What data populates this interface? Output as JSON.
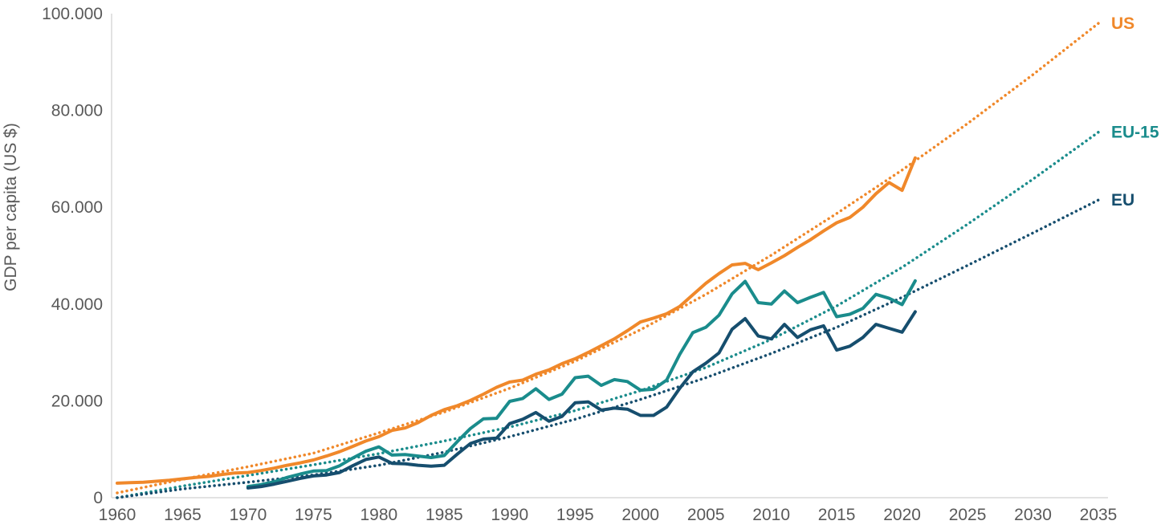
{
  "chart_data": {
    "type": "line",
    "title": "",
    "xlabel": "",
    "ylabel": "GDP per capita (US $)",
    "xlim": [
      1960,
      2035
    ],
    "ylim": [
      0,
      100000
    ],
    "x_ticks": [
      "1960",
      "1965",
      "1970",
      "1975",
      "1980",
      "1985",
      "1990",
      "1995",
      "2000",
      "2005",
      "2010",
      "2015",
      "2020",
      "2025",
      "2030",
      "2035"
    ],
    "y_ticks": [
      "0",
      "20.000",
      "40.000",
      "60.000",
      "80.000",
      "100.000"
    ],
    "x_tick_values": [
      1960,
      1965,
      1970,
      1975,
      1980,
      1985,
      1990,
      1995,
      2000,
      2005,
      2010,
      2015,
      2020,
      2025,
      2030,
      2035
    ],
    "y_tick_values": [
      0,
      20000,
      40000,
      60000,
      80000,
      100000
    ],
    "grid": false,
    "legend": "none",
    "series": [
      {
        "name": "US",
        "color": "#F0882A",
        "label_value": 98000,
        "data": [
          [
            1960,
            3000
          ],
          [
            1961,
            3100
          ],
          [
            1962,
            3200
          ],
          [
            1963,
            3400
          ],
          [
            1964,
            3600
          ],
          [
            1965,
            3900
          ],
          [
            1966,
            4200
          ],
          [
            1967,
            4400
          ],
          [
            1968,
            4800
          ],
          [
            1969,
            5100
          ],
          [
            1970,
            5200
          ],
          [
            1971,
            5600
          ],
          [
            1972,
            6100
          ],
          [
            1973,
            6700
          ],
          [
            1974,
            7200
          ],
          [
            1975,
            7800
          ],
          [
            1976,
            8600
          ],
          [
            1977,
            9500
          ],
          [
            1978,
            10600
          ],
          [
            1979,
            11700
          ],
          [
            1980,
            12600
          ],
          [
            1981,
            13900
          ],
          [
            1982,
            14400
          ],
          [
            1983,
            15500
          ],
          [
            1984,
            17000
          ],
          [
            1985,
            18200
          ],
          [
            1986,
            19000
          ],
          [
            1987,
            20100
          ],
          [
            1988,
            21400
          ],
          [
            1989,
            22800
          ],
          [
            1990,
            23900
          ],
          [
            1991,
            24300
          ],
          [
            1992,
            25500
          ],
          [
            1993,
            26400
          ],
          [
            1994,
            27700
          ],
          [
            1995,
            28700
          ],
          [
            1996,
            30000
          ],
          [
            1997,
            31400
          ],
          [
            1998,
            32800
          ],
          [
            1999,
            34500
          ],
          [
            2000,
            36300
          ],
          [
            2001,
            37100
          ],
          [
            2002,
            38000
          ],
          [
            2003,
            39500
          ],
          [
            2004,
            41900
          ],
          [
            2005,
            44300
          ],
          [
            2006,
            46300
          ],
          [
            2007,
            48100
          ],
          [
            2008,
            48400
          ],
          [
            2009,
            47100
          ],
          [
            2010,
            48500
          ],
          [
            2011,
            50000
          ],
          [
            2012,
            51700
          ],
          [
            2013,
            53300
          ],
          [
            2014,
            55100
          ],
          [
            2015,
            56800
          ],
          [
            2016,
            57900
          ],
          [
            2017,
            60000
          ],
          [
            2018,
            62800
          ],
          [
            2019,
            65100
          ],
          [
            2020,
            63500
          ],
          [
            2021,
            70200
          ]
        ],
        "trend": [
          [
            1960,
            1000
          ],
          [
            1965,
            3800
          ],
          [
            1970,
            6400
          ],
          [
            1975,
            9200
          ],
          [
            1980,
            13400
          ],
          [
            1985,
            17700
          ],
          [
            1990,
            22600
          ],
          [
            1995,
            28200
          ],
          [
            2000,
            34700
          ],
          [
            2005,
            42000
          ],
          [
            2010,
            50100
          ],
          [
            2015,
            58700
          ],
          [
            2020,
            67700
          ],
          [
            2025,
            77300
          ],
          [
            2030,
            87400
          ],
          [
            2035,
            98000
          ]
        ]
      },
      {
        "name": "EU-15",
        "color": "#1A8C8C",
        "label_value": 75500,
        "data": [
          [
            1970,
            2300
          ],
          [
            1971,
            2700
          ],
          [
            1972,
            3300
          ],
          [
            1973,
            4200
          ],
          [
            1974,
            4900
          ],
          [
            1975,
            5500
          ],
          [
            1976,
            5600
          ],
          [
            1977,
            6600
          ],
          [
            1978,
            8200
          ],
          [
            1979,
            9600
          ],
          [
            1980,
            10500
          ],
          [
            1981,
            8800
          ],
          [
            1982,
            8900
          ],
          [
            1983,
            8600
          ],
          [
            1984,
            8300
          ],
          [
            1985,
            8700
          ],
          [
            1986,
            11600
          ],
          [
            1987,
            14300
          ],
          [
            1988,
            16300
          ],
          [
            1989,
            16400
          ],
          [
            1990,
            19900
          ],
          [
            1991,
            20500
          ],
          [
            1992,
            22500
          ],
          [
            1993,
            20300
          ],
          [
            1994,
            21400
          ],
          [
            1995,
            24800
          ],
          [
            1996,
            25100
          ],
          [
            1997,
            23200
          ],
          [
            1998,
            24400
          ],
          [
            1999,
            24000
          ],
          [
            2000,
            22200
          ],
          [
            2001,
            22400
          ],
          [
            2002,
            24300
          ],
          [
            2003,
            29600
          ],
          [
            2004,
            34100
          ],
          [
            2005,
            35200
          ],
          [
            2006,
            37700
          ],
          [
            2007,
            42100
          ],
          [
            2008,
            44700
          ],
          [
            2009,
            40300
          ],
          [
            2010,
            40000
          ],
          [
            2011,
            42700
          ],
          [
            2012,
            40300
          ],
          [
            2013,
            41400
          ],
          [
            2014,
            42400
          ],
          [
            2015,
            37400
          ],
          [
            2016,
            37900
          ],
          [
            2017,
            39100
          ],
          [
            2018,
            42000
          ],
          [
            2019,
            41200
          ],
          [
            2020,
            39900
          ],
          [
            2021,
            44800
          ]
        ],
        "trend": [
          [
            1960,
            0
          ],
          [
            1965,
            2400
          ],
          [
            1970,
            4600
          ],
          [
            1975,
            6800
          ],
          [
            1980,
            9100
          ],
          [
            1985,
            11700
          ],
          [
            1990,
            14600
          ],
          [
            1995,
            18000
          ],
          [
            2000,
            22100
          ],
          [
            2005,
            26900
          ],
          [
            2010,
            32700
          ],
          [
            2015,
            39600
          ],
          [
            2020,
            47600
          ],
          [
            2025,
            56500
          ],
          [
            2030,
            65800
          ],
          [
            2035,
            75500
          ]
        ]
      },
      {
        "name": "EU",
        "color": "#164E6E",
        "label_value": 61500,
        "data": [
          [
            1970,
            2000
          ],
          [
            1971,
            2300
          ],
          [
            1972,
            2800
          ],
          [
            1973,
            3400
          ],
          [
            1974,
            4000
          ],
          [
            1975,
            4500
          ],
          [
            1976,
            4700
          ],
          [
            1977,
            5200
          ],
          [
            1978,
            6600
          ],
          [
            1979,
            7900
          ],
          [
            1980,
            8400
          ],
          [
            1981,
            7100
          ],
          [
            1982,
            7000
          ],
          [
            1983,
            6700
          ],
          [
            1984,
            6500
          ],
          [
            1985,
            6700
          ],
          [
            1986,
            9000
          ],
          [
            1987,
            11200
          ],
          [
            1988,
            12100
          ],
          [
            1989,
            12300
          ],
          [
            1990,
            15300
          ],
          [
            1991,
            16200
          ],
          [
            1992,
            17600
          ],
          [
            1993,
            15800
          ],
          [
            1994,
            16800
          ],
          [
            1995,
            19600
          ],
          [
            1996,
            19800
          ],
          [
            1997,
            18100
          ],
          [
            1998,
            18500
          ],
          [
            1999,
            18300
          ],
          [
            2000,
            17000
          ],
          [
            2001,
            17000
          ],
          [
            2002,
            18700
          ],
          [
            2003,
            22600
          ],
          [
            2004,
            26000
          ],
          [
            2005,
            27800
          ],
          [
            2006,
            29900
          ],
          [
            2007,
            34800
          ],
          [
            2008,
            37000
          ],
          [
            2009,
            33400
          ],
          [
            2010,
            32800
          ],
          [
            2011,
            35800
          ],
          [
            2012,
            33100
          ],
          [
            2013,
            34700
          ],
          [
            2014,
            35500
          ],
          [
            2015,
            30500
          ],
          [
            2016,
            31300
          ],
          [
            2017,
            33100
          ],
          [
            2018,
            35800
          ],
          [
            2019,
            35000
          ],
          [
            2020,
            34200
          ],
          [
            2021,
            38400
          ]
        ],
        "trend": [
          [
            1960,
            0
          ],
          [
            1965,
            1800
          ],
          [
            1970,
            3200
          ],
          [
            1975,
            4700
          ],
          [
            1980,
            6700
          ],
          [
            1985,
            9400
          ],
          [
            1990,
            12600
          ],
          [
            1995,
            16200
          ],
          [
            2000,
            20300
          ],
          [
            2005,
            24800
          ],
          [
            2010,
            29800
          ],
          [
            2015,
            35200
          ],
          [
            2020,
            41400
          ],
          [
            2025,
            48000
          ],
          [
            2030,
            54700
          ],
          [
            2035,
            61500
          ]
        ]
      }
    ]
  }
}
